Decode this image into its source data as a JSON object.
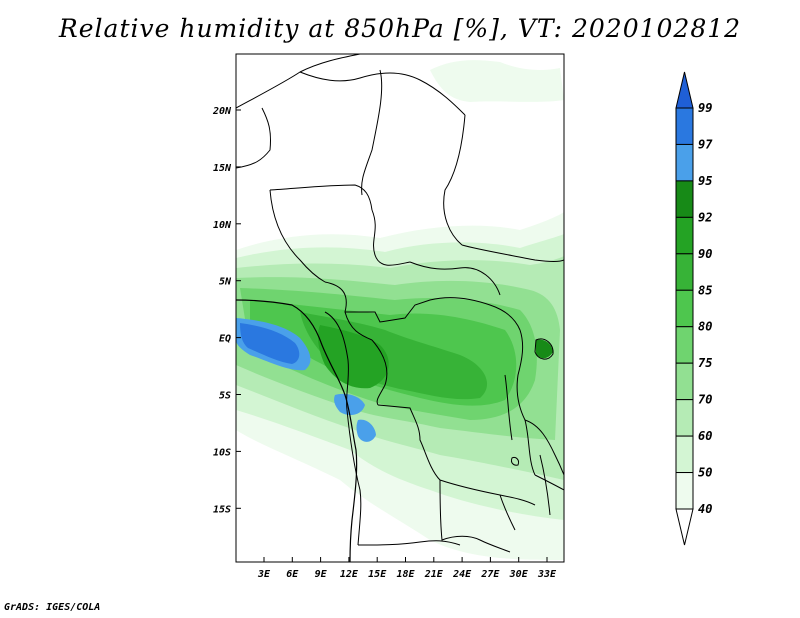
{
  "title": "Relative humidity at 850hPa [%], VT: 2020102812",
  "credit": "GrADS: IGES/COLA",
  "map": {
    "lat_labels": [
      "20N",
      "15N",
      "10N",
      "5N",
      "EQ",
      "5S",
      "10S",
      "15S"
    ],
    "lon_labels": [
      "3E",
      "6E",
      "9E",
      "12E",
      "15E",
      "18E",
      "21E",
      "24E",
      "27E",
      "30E",
      "33E"
    ]
  },
  "colorbar": {
    "levels": [
      "99",
      "97",
      "95",
      "92",
      "90",
      "85",
      "80",
      "75",
      "70",
      "60",
      "50",
      "40"
    ],
    "colors": [
      "#1f5fd6",
      "#2a78e0",
      "#4aa0ea",
      "#178a17",
      "#24a324",
      "#37b337",
      "#4ec64e",
      "#6fd46f",
      "#92e092",
      "#b5ebb5",
      "#d3f5d3",
      "#eefbee",
      "#ffffff"
    ]
  }
}
